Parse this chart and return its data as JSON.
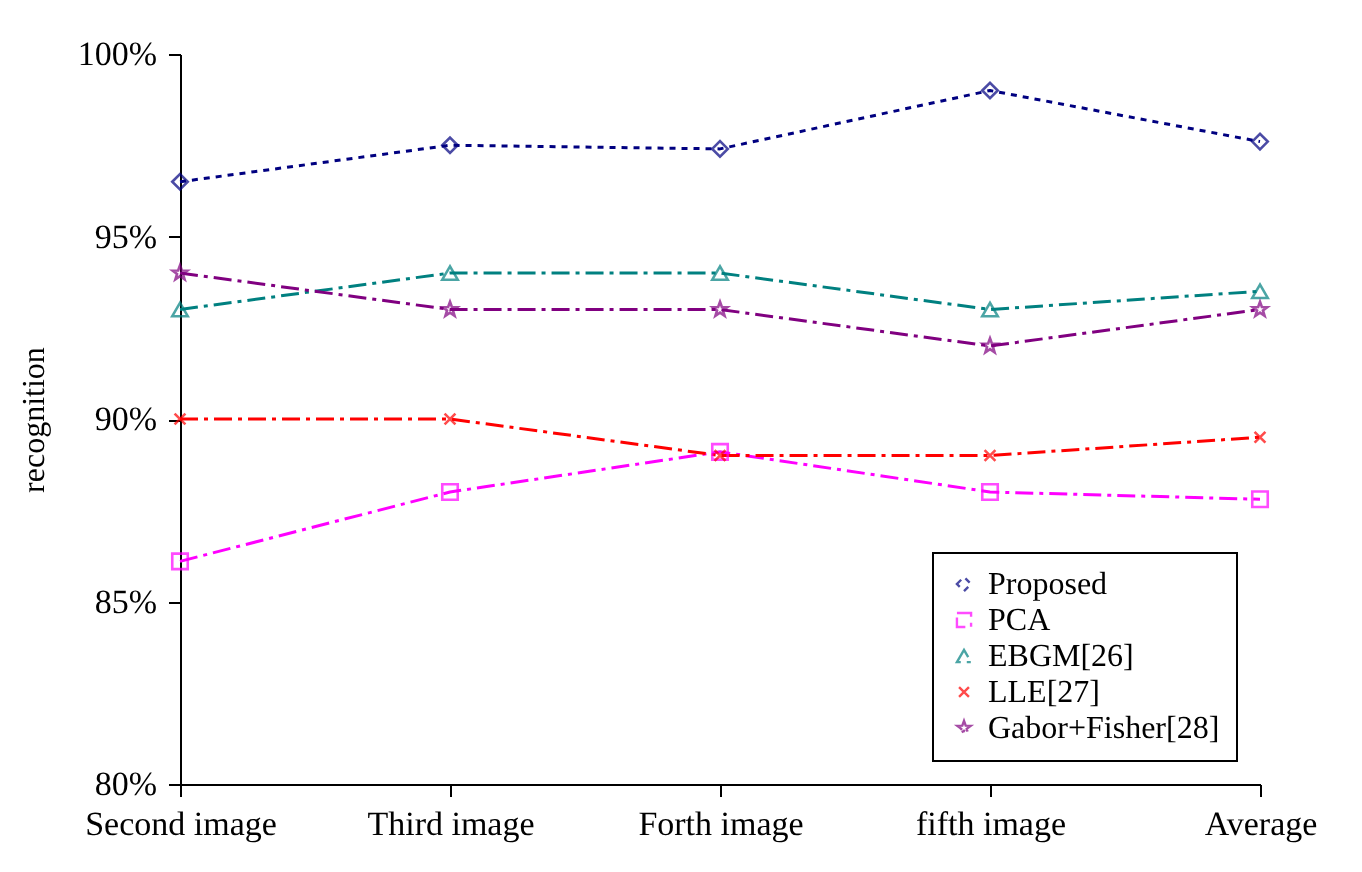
{
  "chart_data": {
    "type": "line",
    "ylabel": "recognition",
    "categories": [
      "Second image",
      "Third image",
      "Forth  image",
      "fifth image",
      "Average"
    ],
    "ylim": [
      80,
      100
    ],
    "yticks": [
      {
        "value": 80,
        "label": "80%"
      },
      {
        "value": 85,
        "label": "85%"
      },
      {
        "value": 90,
        "label": "90%"
      },
      {
        "value": 95,
        "label": "95%"
      },
      {
        "value": 100,
        "label": "100%"
      }
    ],
    "grid": false,
    "legend": "bottom right",
    "series": [
      {
        "name": "Proposed",
        "color": "#000080",
        "marker": "diamond",
        "line_style": "dotted",
        "values": [
          96.5,
          97.5,
          97.4,
          99.0,
          97.6
        ]
      },
      {
        "name": "PCA",
        "color": "#ff00ff",
        "marker": "square",
        "line_style": "dashed",
        "values": [
          86.1,
          88.0,
          89.1,
          88.0,
          87.8
        ]
      },
      {
        "name": "EBGM[26]",
        "color": "#008080",
        "marker": "triangle",
        "line_style": "dashed",
        "values": [
          93.0,
          94.0,
          94.0,
          93.0,
          93.5
        ]
      },
      {
        "name": "LLE[27]",
        "color": "#ff0000",
        "marker": "cross",
        "line_style": "dashed",
        "values": [
          90.0,
          90.0,
          89.0,
          89.0,
          89.5
        ]
      },
      {
        "name": "Gabor+Fisher[28]",
        "color": "#800080",
        "marker": "star",
        "line_style": "dashed",
        "values": [
          94.0,
          93.0,
          93.0,
          92.0,
          93.0
        ]
      }
    ]
  }
}
